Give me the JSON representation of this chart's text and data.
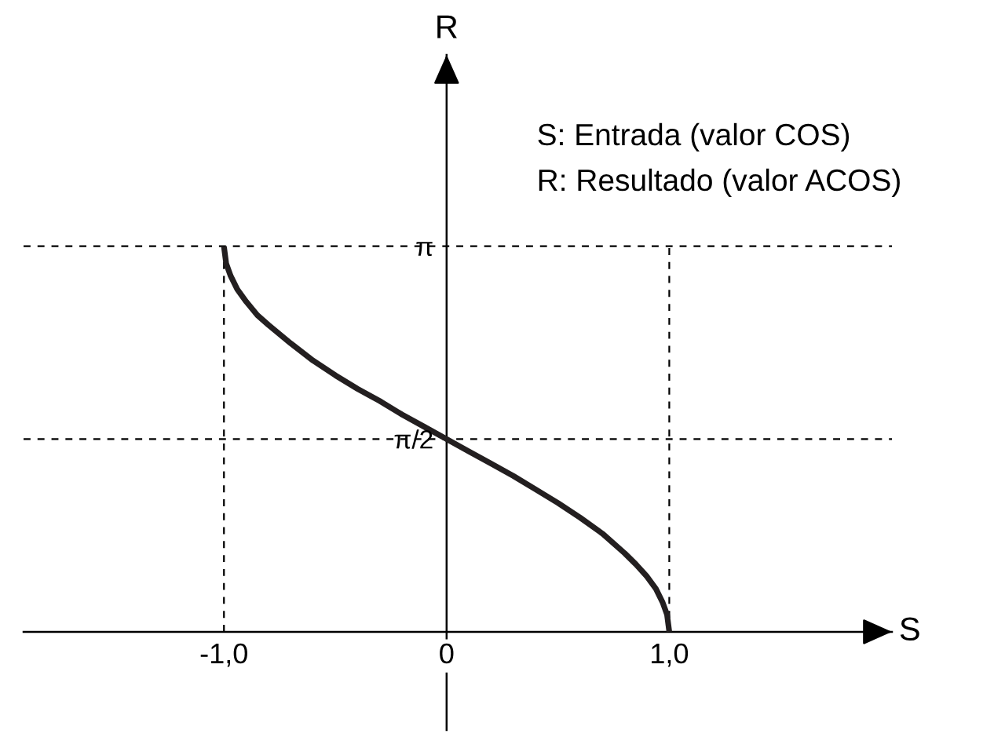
{
  "chart_data": {
    "type": "line",
    "xlabel": "S",
    "ylabel": "R",
    "annotations": [
      "S: Entrada (valor COS)",
      "R: Resultado (valor ACOS)"
    ],
    "x": [
      -1,
      -0.99,
      -0.97,
      -0.94,
      -0.9,
      -0.85,
      -0.8,
      -0.7,
      -0.6,
      -0.5,
      -0.4,
      -0.3,
      -0.2,
      -0.1,
      0,
      0.1,
      0.2,
      0.3,
      0.4,
      0.5,
      0.6,
      0.7,
      0.8,
      0.85,
      0.9,
      0.94,
      0.97,
      0.99,
      1
    ],
    "series": [
      {
        "color": "#231f20",
        "values": [
          3.14,
          3.0,
          2.9,
          2.79,
          2.69,
          2.58,
          2.5,
          2.35,
          2.21,
          2.09,
          1.98,
          1.88,
          1.77,
          1.67,
          1.57,
          1.47,
          1.37,
          1.27,
          1.16,
          1.05,
          0.93,
          0.8,
          0.64,
          0.55,
          0.45,
          0.35,
          0.24,
          0.14,
          0
        ]
      }
    ],
    "xlim": [
      -1.9,
      2.0
    ],
    "ylim": [
      -0.8,
      4.7
    ],
    "xticks": [
      {
        "value": -1,
        "label": "-1,0"
      },
      0,
      {
        "value": 1,
        "label": "1,0"
      }
    ],
    "yticks": [
      {
        "value": 1.5708,
        "label": "π/2"
      },
      {
        "value": 3.1416,
        "label": "π"
      }
    ],
    "ref_lines": [
      {
        "axis": "y",
        "value": 3.1416,
        "color": "#000000",
        "line_style": "dashed"
      },
      {
        "axis": "y",
        "value": 1.5708,
        "color": "#000000",
        "line_style": "dashed"
      },
      {
        "axis": "x",
        "value": -1,
        "color": "#000000",
        "line_style": "dashed"
      },
      {
        "axis": "x",
        "value": 1,
        "color": "#000000",
        "line_style": "dashed"
      }
    ],
    "line_style": "solid"
  }
}
